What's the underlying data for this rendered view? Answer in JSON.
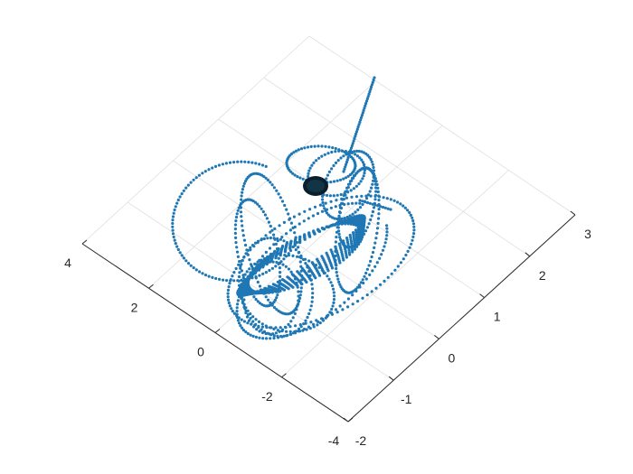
{
  "chart_data": {
    "type": "scatter",
    "title": "",
    "xlabel": "",
    "ylabel": "",
    "zlabel": "",
    "grid": true,
    "view": "3d-isometric",
    "colors": {
      "points": "#1f77b4",
      "core": "#0b1e2b",
      "axis": "#262626",
      "grid": "#dfdfdf"
    },
    "x_ticks": [
      -2,
      -1,
      0,
      1,
      2,
      3
    ],
    "y_ticks": [
      -4,
      -2,
      0,
      2,
      4
    ],
    "xlim": [
      -2,
      3
    ],
    "ylim": [
      -4,
      4
    ],
    "series": [
      {
        "points_desc": "dense dotted 3D trajectory looping around a dark central cluster",
        "approx_points": 1400
      }
    ]
  }
}
